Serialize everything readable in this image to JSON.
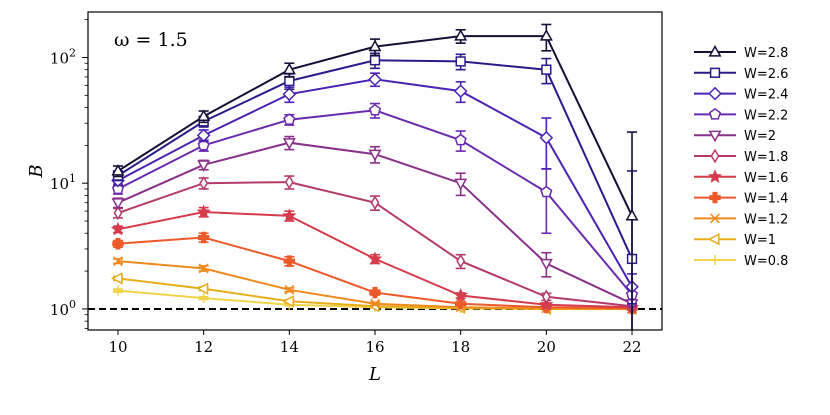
{
  "chart_data": {
    "type": "line",
    "annotation": "ω = 1.5",
    "xlabel": "L",
    "ylabel": "B",
    "x": [
      10,
      12,
      14,
      16,
      18,
      20,
      22
    ],
    "xlim": [
      9.3,
      22.7
    ],
    "ylim": [
      0.68,
      230
    ],
    "yscale": "log",
    "x_ticks": [
      "10",
      "12",
      "14",
      "16",
      "18",
      "20",
      "22"
    ],
    "y_ticks": [
      {
        "value": 1,
        "base": "10",
        "exp": "0"
      },
      {
        "value": 10,
        "base": "10",
        "exp": "1"
      },
      {
        "value": 100,
        "base": "10",
        "exp": "2"
      }
    ],
    "reference_line": {
      "y": 1,
      "style": "dashed",
      "color": "#000000"
    },
    "grid": false,
    "legend_position": "right-outside",
    "series": [
      {
        "name": "W=2.8",
        "marker": "triangle-up",
        "color": "#140f35",
        "values": [
          12.5,
          34,
          80,
          122,
          148,
          148,
          5.5
        ],
        "errors": [
          1.2,
          3.5,
          10,
          18,
          18,
          35,
          20
        ]
      },
      {
        "name": "W=2.6",
        "marker": "square",
        "color": "#2b1b8a",
        "values": [
          11.5,
          31,
          65,
          95,
          93,
          80,
          2.5
        ],
        "errors": [
          1.0,
          3,
          9,
          13,
          13,
          18,
          10
        ]
      },
      {
        "name": "W=2.4",
        "marker": "diamond",
        "color": "#4a23b3",
        "values": [
          10.5,
          24,
          51,
          67,
          54,
          23,
          1.5
        ],
        "errors": [
          0.9,
          2.5,
          7,
          8,
          10,
          10,
          0.4
        ]
      },
      {
        "name": "W=2.2",
        "marker": "pentagon",
        "color": "#6a2ab0",
        "values": [
          9.0,
          20,
          32,
          38,
          22,
          8.5,
          1.3
        ],
        "errors": [
          0.8,
          2,
          3,
          5,
          4,
          4.5,
          0.2
        ]
      },
      {
        "name": "W=2",
        "marker": "triangle-down",
        "color": "#8a2f8a",
        "values": [
          7.0,
          14,
          21,
          17,
          10,
          2.3,
          1.1
        ],
        "errors": [
          0.6,
          1.2,
          2.5,
          2.5,
          2,
          0.5,
          0.05
        ]
      },
      {
        "name": "W=1.8",
        "marker": "thin-diamond",
        "color": "#b53a6a",
        "values": [
          5.8,
          10,
          10.2,
          7,
          2.4,
          1.25,
          1.05
        ],
        "errors": [
          0.5,
          1.0,
          1.2,
          0.9,
          0.3,
          0.08,
          0.03
        ]
      },
      {
        "name": "W=1.6",
        "marker": "star",
        "color": "#d63c4c",
        "values": [
          4.3,
          5.9,
          5.5,
          2.5,
          1.28,
          1.08,
          1.03
        ],
        "errors": [
          0.25,
          0.5,
          0.5,
          0.2,
          0.06,
          0.03,
          0.02
        ]
      },
      {
        "name": "W=1.4",
        "marker": "plus-filled",
        "color": "#ec5a2a",
        "values": [
          3.3,
          3.7,
          2.4,
          1.35,
          1.1,
          1.03,
          1.01
        ],
        "errors": [
          0.2,
          0.3,
          0.2,
          0.06,
          0.03,
          0.02,
          0.01
        ]
      },
      {
        "name": "W=1.2",
        "marker": "x",
        "color": "#f08a1c",
        "values": [
          2.4,
          2.1,
          1.42,
          1.1,
          1.03,
          1.01,
          1.0
        ],
        "errors": [
          0.1,
          0.1,
          0.05,
          0.03,
          0.01,
          0.01,
          0.01
        ]
      },
      {
        "name": "W=1",
        "marker": "triangle-left",
        "color": "#e8ad1a",
        "values": [
          1.75,
          1.45,
          1.15,
          1.05,
          1.02,
          1.0,
          1.0
        ],
        "errors": [
          0.06,
          0.05,
          0.03,
          0.02,
          0.01,
          0.01,
          0.01
        ]
      },
      {
        "name": "W=0.8",
        "marker": "plus",
        "color": "#efd44a",
        "values": [
          1.4,
          1.22,
          1.08,
          1.03,
          1.01,
          1.0,
          1.0
        ],
        "errors": [
          0.04,
          0.03,
          0.02,
          0.01,
          0.01,
          0.01,
          0.01
        ]
      }
    ]
  }
}
